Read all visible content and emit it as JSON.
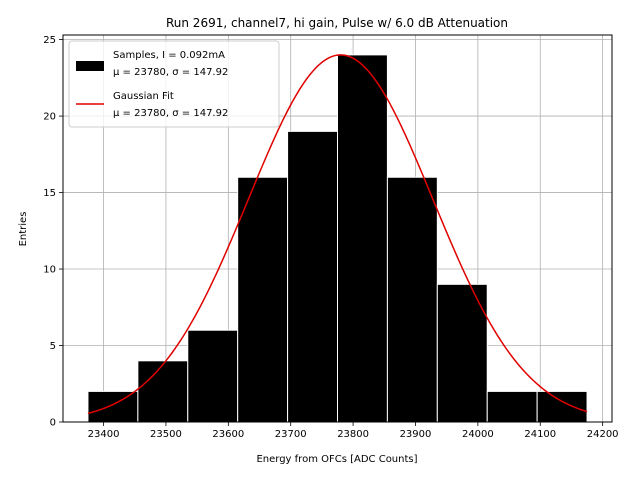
{
  "chart_data": {
    "type": "bar",
    "title": "Run 2691, channel7, hi gain, Pulse w/ 6.0 dB Attenuation",
    "xlabel": "Energy from OFCs [ADC Counts]",
    "ylabel": "Entries",
    "xlim": [
      23335,
      24215
    ],
    "ylim": [
      0,
      25.3
    ],
    "xticks": [
      23400,
      23500,
      23600,
      23700,
      23800,
      23900,
      24000,
      24100,
      24200
    ],
    "yticks": [
      0,
      5,
      10,
      15,
      20,
      25
    ],
    "grid": true,
    "legend_position": "upper-left",
    "histogram": {
      "name": "Samples, I = 0.092mA",
      "stats": "μ = 23780, σ = 147.92",
      "bin_edges": [
        23375,
        23455,
        23535,
        23615,
        23695,
        23775,
        23855,
        23935,
        24015,
        24095,
        24175
      ],
      "counts": [
        2,
        4,
        6,
        16,
        19,
        24,
        16,
        9,
        2,
        2
      ],
      "color": "#000000"
    },
    "fit": {
      "name": "Gaussian Fit",
      "stats": "μ = 23780, σ = 147.92",
      "type": "gaussian",
      "amplitude": 24,
      "mu": 23780,
      "sigma": 147.92,
      "x_range": [
        23375,
        24175
      ],
      "color": "#e00000"
    }
  }
}
